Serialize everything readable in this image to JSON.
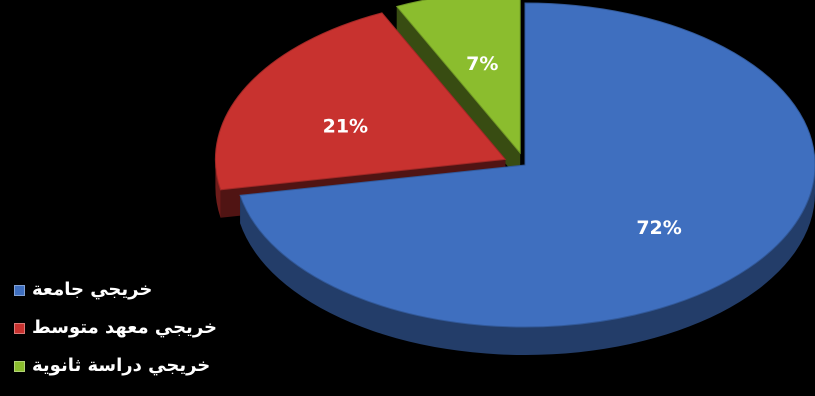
{
  "chart_data": {
    "type": "pie",
    "title": "",
    "three_d": true,
    "exploded": true,
    "slices": [
      {
        "label": "خريجي جامعة",
        "value": 72,
        "value_label": "72%",
        "color": "#3f6fbf"
      },
      {
        "label": "خريجي معهد متوسط",
        "value": 21,
        "value_label": "21%",
        "color": "#c8322f"
      },
      {
        "label": "خريجي دراسة ثانوية",
        "value": 7,
        "value_label": "7%",
        "color": "#8bbd2e"
      }
    ],
    "legend": {
      "position": "bottom-left"
    }
  },
  "colors": {
    "background": "#000000",
    "label_text": "#ffffff"
  }
}
